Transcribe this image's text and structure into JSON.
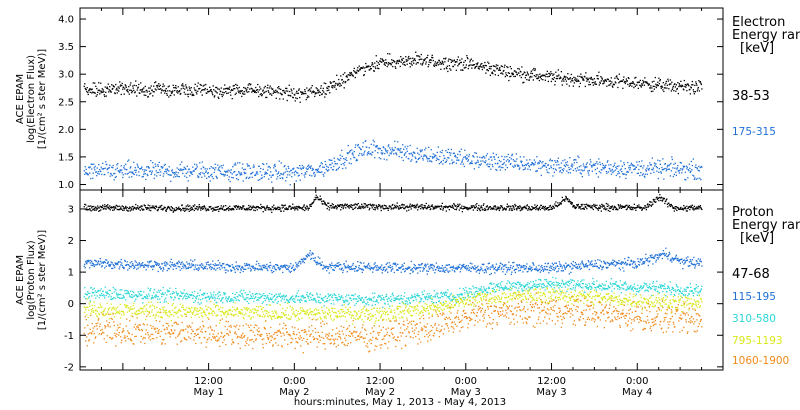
{
  "footer": "hours:minutes, May  1, 2013 - May  4, 2013",
  "colors": {
    "black": "#000000",
    "blue": "#1f6fd6",
    "cyan": "#2ad6d6",
    "yellow": "#d8e81a",
    "orange": "#f08a1a"
  },
  "legend_top": {
    "line1": "Electron",
    "line2": "Energy ran",
    "unit": "[keV]",
    "items": [
      "38-53",
      "175-315"
    ]
  },
  "legend_bottom": {
    "line1": "Proton",
    "line2": "Energy ran",
    "unit": "[keV]",
    "items": [
      "47-68",
      "115-195",
      "310-580",
      "795-1193",
      "1060-1900"
    ]
  },
  "chart_data": [
    {
      "type": "scatter",
      "instrument": "ACE EPAM",
      "ylabel_line1": "log(Electron Flux)",
      "ylabel_line2": "[1/(cm² s ster MeV)]",
      "ylim": [
        0.9,
        4.2
      ],
      "yticks": [
        1.0,
        1.5,
        2.0,
        2.5,
        3.0,
        3.5,
        4.0
      ],
      "ytick_labels": [
        "1.0",
        "1.5",
        "2.0",
        "2.5",
        "3.0",
        "3.5",
        "4.0"
      ],
      "x_units": "hours since May 1, 2013 00:00",
      "xlim": [
        -6,
        84
      ],
      "series": [
        {
          "name": "38-53",
          "color": "#000000",
          "spread": 0.06,
          "keypoints": [
            [
              -5.5,
              2.72
            ],
            [
              0,
              2.75
            ],
            [
              12,
              2.7
            ],
            [
              20,
              2.72
            ],
            [
              24,
              2.65
            ],
            [
              28,
              2.7
            ],
            [
              30,
              2.85
            ],
            [
              33,
              3.1
            ],
            [
              36,
              3.22
            ],
            [
              42,
              3.25
            ],
            [
              48,
              3.2
            ],
            [
              54,
              3.05
            ],
            [
              60,
              2.95
            ],
            [
              66,
              2.9
            ],
            [
              72,
              2.85
            ],
            [
              78,
              2.78
            ],
            [
              81,
              2.78
            ]
          ]
        },
        {
          "name": "175-315",
          "color": "#1f6fd6",
          "spread": 0.08,
          "keypoints": [
            [
              -5.5,
              1.25
            ],
            [
              12,
              1.25
            ],
            [
              24,
              1.22
            ],
            [
              28,
              1.3
            ],
            [
              31,
              1.5
            ],
            [
              34,
              1.65
            ],
            [
              38,
              1.62
            ],
            [
              44,
              1.52
            ],
            [
              52,
              1.42
            ],
            [
              60,
              1.35
            ],
            [
              72,
              1.3
            ],
            [
              81,
              1.28
            ]
          ]
        }
      ]
    },
    {
      "type": "scatter",
      "instrument": "ACE EPAM",
      "ylabel_line1": "log(Proton Flux)",
      "ylabel_line2": "[1/(cm² s ster MeV)]",
      "ylim": [
        -2.1,
        3.6
      ],
      "yticks": [
        -2,
        -1,
        0,
        1,
        2,
        3
      ],
      "ytick_labels": [
        "-2",
        "-1",
        "0",
        "1",
        "2",
        "3"
      ],
      "x_units": "hours since May 1, 2013 00:00",
      "xlim": [
        -6,
        84
      ],
      "xticks": [
        12,
        24,
        36,
        48,
        60,
        72
      ],
      "xtick_labels": [
        "12:00",
        "0:00",
        "12:00",
        "0:00",
        "12:00",
        "0:00"
      ],
      "xtick_sublabels": [
        "May 1",
        "May 2",
        "May 2",
        "May 3",
        "May 3",
        "May 4"
      ],
      "series": [
        {
          "name": "47-68",
          "color": "#000000",
          "spread": 0.05,
          "keypoints": [
            [
              -5.5,
              3.05
            ],
            [
              26,
              3.05
            ],
            [
              27,
              3.4
            ],
            [
              28.5,
              3.1
            ],
            [
              60,
              3.05
            ],
            [
              62,
              3.35
            ],
            [
              63,
              3.1
            ],
            [
              73,
              3.05
            ],
            [
              75,
              3.4
            ],
            [
              77,
              3.05
            ],
            [
              81,
              3.05
            ]
          ]
        },
        {
          "name": "115-195",
          "color": "#1f6fd6",
          "spread": 0.08,
          "keypoints": [
            [
              -5.5,
              1.3
            ],
            [
              12,
              1.2
            ],
            [
              24,
              1.15
            ],
            [
              26,
              1.6
            ],
            [
              28,
              1.2
            ],
            [
              40,
              1.15
            ],
            [
              60,
              1.15
            ],
            [
              66,
              1.25
            ],
            [
              72,
              1.3
            ],
            [
              76,
              1.6
            ],
            [
              78,
              1.35
            ],
            [
              81,
              1.3
            ]
          ]
        },
        {
          "name": "310-580",
          "color": "#2ad6d6",
          "spread": 0.1,
          "keypoints": [
            [
              -5.5,
              0.35
            ],
            [
              12,
              0.25
            ],
            [
              24,
              0.2
            ],
            [
              36,
              0.15
            ],
            [
              46,
              0.25
            ],
            [
              52,
              0.55
            ],
            [
              60,
              0.65
            ],
            [
              70,
              0.55
            ],
            [
              81,
              0.45
            ]
          ]
        },
        {
          "name": "795-1193",
          "color": "#d8e81a",
          "spread": 0.12,
          "keypoints": [
            [
              -5.5,
              -0.15
            ],
            [
              12,
              -0.25
            ],
            [
              24,
              -0.3
            ],
            [
              36,
              -0.3
            ],
            [
              44,
              -0.1
            ],
            [
              50,
              0.2
            ],
            [
              60,
              0.3
            ],
            [
              70,
              0.15
            ],
            [
              81,
              0.0
            ]
          ]
        },
        {
          "name": "1060-1900",
          "color": "#f08a1a",
          "spread": 0.22,
          "keypoints": [
            [
              -5.5,
              -0.8
            ],
            [
              12,
              -0.9
            ],
            [
              24,
              -1.0
            ],
            [
              36,
              -1.0
            ],
            [
              44,
              -0.7
            ],
            [
              50,
              -0.3
            ],
            [
              60,
              -0.2
            ],
            [
              70,
              -0.35
            ],
            [
              81,
              -0.55
            ]
          ]
        }
      ]
    }
  ]
}
